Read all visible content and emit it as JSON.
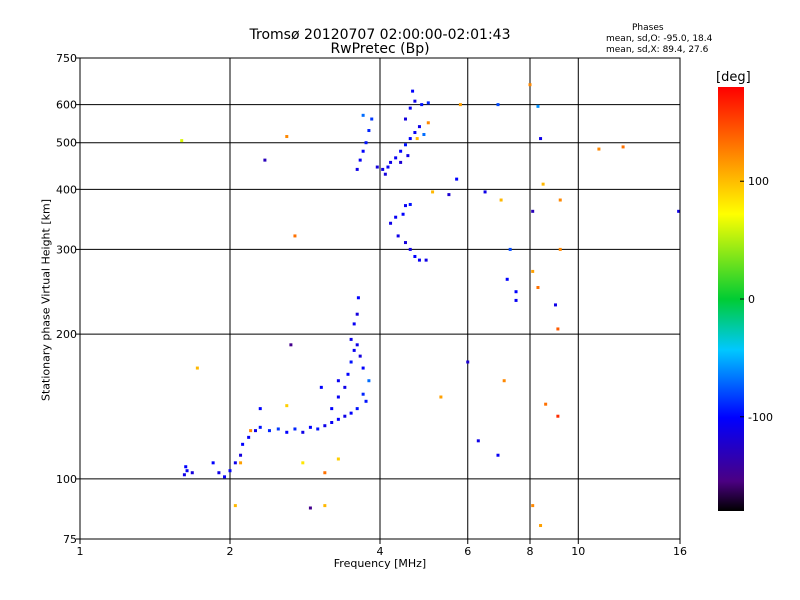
{
  "chart_data": {
    "type": "scatter",
    "title": "Tromsø 20120707 02:00:00-02:01:43",
    "subtitle": "RwPretec (Bp)",
    "xlabel": "Frequency [MHz]",
    "ylabel": "Stationary phase Virtual Height [km]",
    "x_scale": "log",
    "y_scale": "log",
    "xlim": [
      1,
      16
    ],
    "ylim": [
      75,
      750
    ],
    "x_ticks": [
      1,
      2,
      4,
      6,
      8,
      10,
      16
    ],
    "x_tick_labels": [
      "1",
      "2",
      "4",
      "6",
      "8",
      "10",
      "16"
    ],
    "y_ticks": [
      75,
      100,
      200,
      300,
      400,
      500,
      600,
      750
    ],
    "y_tick_labels": [
      "75",
      "100",
      "200",
      "300",
      "400",
      "500",
      "600",
      "750"
    ],
    "grid": true,
    "info_box": {
      "heading": "Phases",
      "line_o": "mean, sd,O: -95.0, 18.4",
      "line_x": "mean, sd,X:  89.4, 27.6"
    },
    "colorbar": {
      "label": "[deg]",
      "range": [
        -180,
        180
      ],
      "ticks": [
        100,
        0,
        -100
      ],
      "tick_labels": [
        "100",
        "0",
        "-100"
      ]
    },
    "points": [
      [
        1.62,
        102,
        -110
      ],
      [
        1.64,
        104,
        -105
      ],
      [
        1.68,
        103,
        -115
      ],
      [
        1.63,
        106,
        -100
      ],
      [
        1.85,
        108,
        -100
      ],
      [
        1.9,
        103,
        -110
      ],
      [
        1.95,
        101,
        -105
      ],
      [
        2.0,
        104,
        -100
      ],
      [
        2.05,
        108,
        -110
      ],
      [
        2.1,
        112,
        -115
      ],
      [
        2.12,
        118,
        -100
      ],
      [
        2.18,
        122,
        -105
      ],
      [
        2.25,
        126,
        -110
      ],
      [
        2.3,
        128,
        -95
      ],
      [
        2.4,
        126,
        -90
      ],
      [
        2.5,
        127,
        -85
      ],
      [
        2.6,
        125,
        -100
      ],
      [
        2.7,
        127,
        -90
      ],
      [
        2.8,
        125,
        -110
      ],
      [
        2.9,
        128,
        -100
      ],
      [
        3.0,
        127,
        -95
      ],
      [
        3.1,
        129,
        -110
      ],
      [
        3.2,
        131,
        -105
      ],
      [
        3.3,
        133,
        -100
      ],
      [
        3.4,
        135,
        -110
      ],
      [
        3.5,
        137,
        -100
      ],
      [
        3.6,
        140,
        -95
      ],
      [
        3.2,
        140,
        -100
      ],
      [
        3.3,
        148,
        -105
      ],
      [
        3.4,
        155,
        -110
      ],
      [
        3.45,
        165,
        -100
      ],
      [
        3.5,
        175,
        -95
      ],
      [
        3.55,
        185,
        -105
      ],
      [
        3.6,
        190,
        -110
      ],
      [
        3.65,
        180,
        -115
      ],
      [
        3.5,
        195,
        -110
      ],
      [
        3.55,
        210,
        -105
      ],
      [
        3.6,
        220,
        -115
      ],
      [
        3.62,
        238,
        -100
      ],
      [
        3.7,
        150,
        -90
      ],
      [
        3.75,
        145,
        -95
      ],
      [
        3.8,
        160,
        -70
      ],
      [
        3.7,
        170,
        -100
      ],
      [
        3.05,
        155,
        -100
      ],
      [
        3.3,
        160,
        -105
      ],
      [
        2.6,
        142,
        90
      ],
      [
        2.2,
        126,
        120
      ],
      [
        2.1,
        108,
        110
      ],
      [
        1.72,
        170,
        100
      ],
      [
        2.3,
        140,
        -100
      ],
      [
        3.1,
        103,
        130
      ],
      [
        2.9,
        87,
        -150
      ],
      [
        3.1,
        88,
        100
      ],
      [
        3.3,
        110,
        90
      ],
      [
        2.8,
        108,
        80
      ],
      [
        3.6,
        440,
        -110
      ],
      [
        3.65,
        460,
        -105
      ],
      [
        3.7,
        480,
        -100
      ],
      [
        3.75,
        500,
        -95
      ],
      [
        3.8,
        530,
        -90
      ],
      [
        3.85,
        560,
        -85
      ],
      [
        3.7,
        570,
        -70
      ],
      [
        3.95,
        445,
        -115
      ],
      [
        4.05,
        440,
        -110
      ],
      [
        4.15,
        445,
        -105
      ],
      [
        4.2,
        455,
        -110
      ],
      [
        4.3,
        465,
        -105
      ],
      [
        4.4,
        480,
        -100
      ],
      [
        4.5,
        495,
        -95
      ],
      [
        4.6,
        510,
        -100
      ],
      [
        4.7,
        525,
        -105
      ],
      [
        4.8,
        540,
        -110
      ],
      [
        4.5,
        560,
        -115
      ],
      [
        4.6,
        590,
        -105
      ],
      [
        4.7,
        610,
        -110
      ],
      [
        4.65,
        640,
        -100
      ],
      [
        4.85,
        600,
        -95
      ],
      [
        5.0,
        605,
        -90
      ],
      [
        4.9,
        520,
        -70
      ],
      [
        4.75,
        510,
        100
      ],
      [
        4.55,
        470,
        -110
      ],
      [
        4.4,
        455,
        -120
      ],
      [
        4.1,
        430,
        -115
      ],
      [
        4.2,
        340,
        -110
      ],
      [
        4.3,
        350,
        -105
      ],
      [
        4.45,
        355,
        -100
      ],
      [
        4.5,
        370,
        -105
      ],
      [
        4.35,
        320,
        -110
      ],
      [
        4.5,
        310,
        -115
      ],
      [
        4.6,
        300,
        -110
      ],
      [
        4.7,
        290,
        -100
      ],
      [
        4.8,
        285,
        -105
      ],
      [
        4.95,
        285,
        -110
      ],
      [
        4.6,
        372,
        -95
      ],
      [
        5.1,
        395,
        100
      ],
      [
        5.5,
        390,
        -120
      ],
      [
        6.5,
        395,
        -110
      ],
      [
        5.0,
        550,
        120
      ],
      [
        5.8,
        600,
        110
      ],
      [
        6.9,
        600,
        -80
      ],
      [
        8.3,
        595,
        -60
      ],
      [
        8.0,
        660,
        120
      ],
      [
        8.4,
        510,
        -110
      ],
      [
        7.0,
        380,
        100
      ],
      [
        7.3,
        300,
        -80
      ],
      [
        7.2,
        260,
        -100
      ],
      [
        8.1,
        360,
        -130
      ],
      [
        8.1,
        270,
        110
      ],
      [
        8.3,
        250,
        130
      ],
      [
        9.0,
        230,
        -110
      ],
      [
        7.5,
        235,
        -105
      ],
      [
        7.5,
        245,
        -100
      ],
      [
        9.2,
        380,
        120
      ],
      [
        8.5,
        410,
        100
      ],
      [
        9.2,
        300,
        120
      ],
      [
        9.1,
        205,
        140
      ],
      [
        6.0,
        175,
        -120
      ],
      [
        7.1,
        160,
        120
      ],
      [
        5.3,
        148,
        110
      ],
      [
        6.3,
        120,
        -110
      ],
      [
        6.9,
        112,
        -105
      ],
      [
        8.1,
        88,
        120
      ],
      [
        8.4,
        80,
        110
      ],
      [
        8.6,
        143,
        130
      ],
      [
        9.1,
        135,
        160
      ],
      [
        11.0,
        485,
        120
      ],
      [
        12.3,
        490,
        130
      ],
      [
        15.9,
        360,
        -110
      ],
      [
        1.6,
        505,
        60
      ],
      [
        2.35,
        460,
        -130
      ],
      [
        2.6,
        515,
        120
      ],
      [
        2.7,
        320,
        130
      ],
      [
        2.65,
        190,
        -150
      ],
      [
        2.05,
        88,
        100
      ],
      [
        5.7,
        420,
        -100
      ]
    ]
  }
}
